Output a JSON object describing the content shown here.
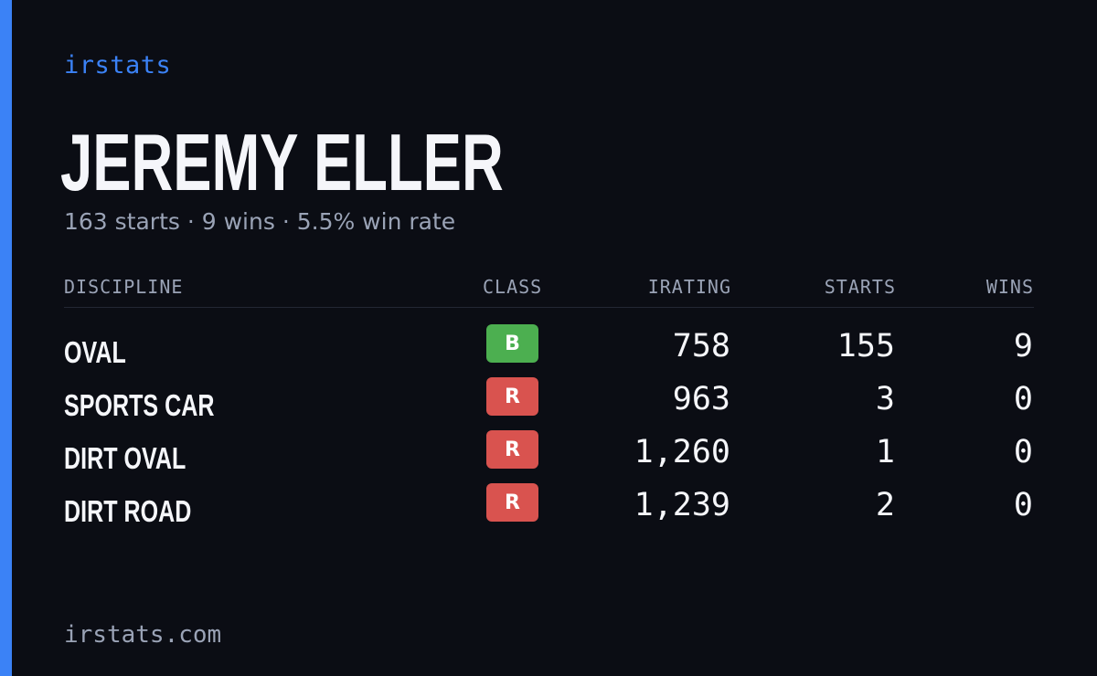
{
  "brand": "irstats",
  "driver": {
    "name": "JEREMY ELLER",
    "summary": "163 starts · 9 wins · 5.5% win rate"
  },
  "table": {
    "headers": {
      "discipline": "DISCIPLINE",
      "class": "CLASS",
      "irating": "IRATING",
      "starts": "STARTS",
      "wins": "WINS"
    },
    "rows": [
      {
        "discipline": "OVAL",
        "class": "B",
        "class_color": "#4caf50",
        "irating": "758",
        "starts": "155",
        "wins": "9"
      },
      {
        "discipline": "SPORTS CAR",
        "class": "R",
        "class_color": "#d9534f",
        "irating": "963",
        "starts": "3",
        "wins": "0"
      },
      {
        "discipline": "DIRT OVAL",
        "class": "R",
        "class_color": "#d9534f",
        "irating": "1,260",
        "starts": "1",
        "wins": "0"
      },
      {
        "discipline": "DIRT ROAD",
        "class": "R",
        "class_color": "#d9534f",
        "irating": "1,239",
        "starts": "2",
        "wins": "0"
      }
    ]
  },
  "footer": "irstats.com",
  "colors": {
    "accent": "#3b82f6",
    "background": "#0b0d14",
    "muted_text": "#9aa3b6"
  }
}
